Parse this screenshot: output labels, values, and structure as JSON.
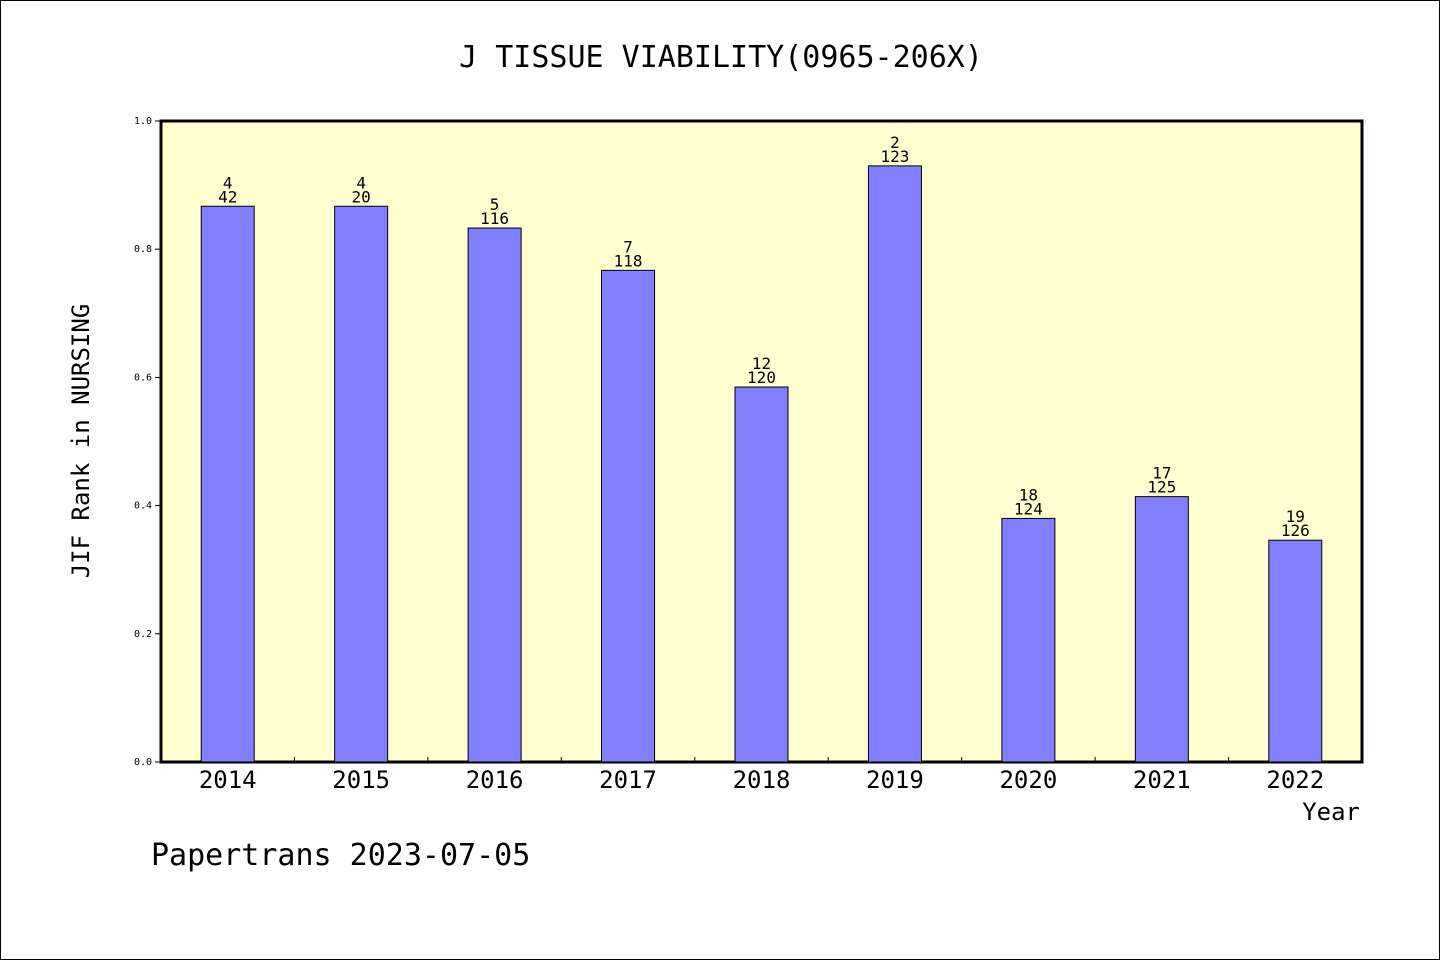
{
  "chart_data": {
    "type": "bar",
    "title": "J TISSUE VIABILITY(0965-206X)",
    "xlabel": "Year",
    "ylabel": "JIF Rank in NURSING",
    "ylim": [
      0,
      1.0
    ],
    "yticks": [
      "0.0",
      "0.2",
      "0.4",
      "0.6",
      "0.8",
      "1.0"
    ],
    "categories": [
      "2014",
      "2015",
      "2016",
      "2017",
      "2018",
      "2019",
      "2020",
      "2021",
      "2022"
    ],
    "values": [
      0.867,
      0.867,
      0.833,
      0.767,
      0.585,
      0.93,
      0.38,
      0.414,
      0.346
    ],
    "rank": [
      "4",
      "4",
      "5",
      "7",
      "12",
      "2",
      "18",
      "17",
      "19"
    ],
    "total": [
      "42",
      "20",
      "116",
      "118",
      "120",
      "123",
      "124",
      "125",
      "126"
    ],
    "bar_color": "#8080ff",
    "plot_background": "#ffffd0",
    "grid": false
  },
  "footer": "Papertrans 2023-07-05"
}
